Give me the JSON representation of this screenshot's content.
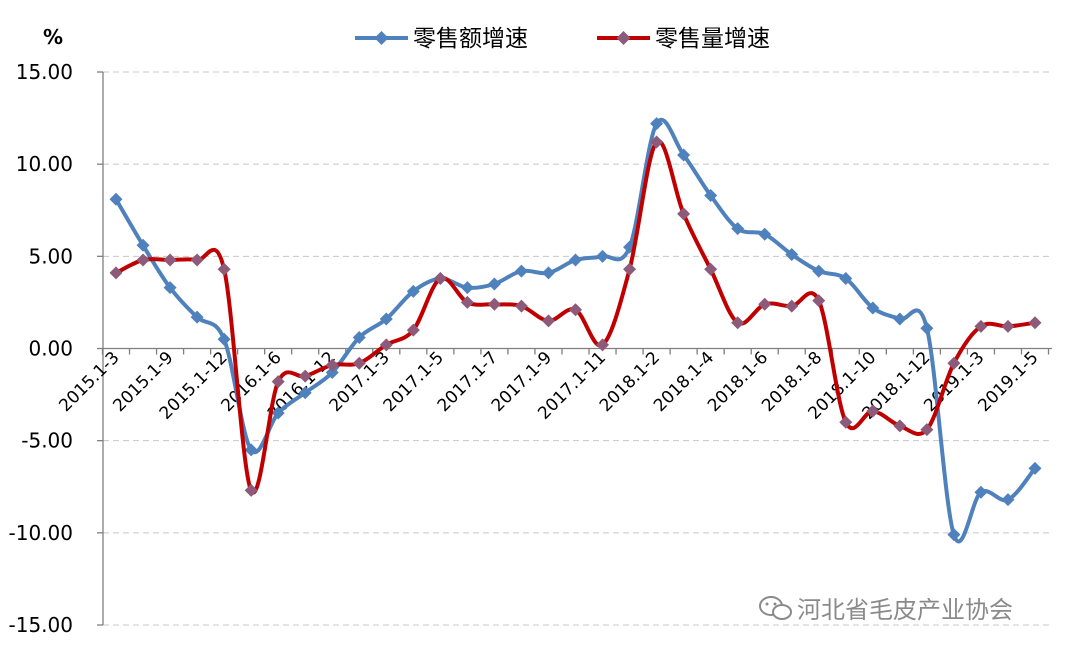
{
  "chart_data": {
    "type": "line",
    "unit_label": "%",
    "ylim": [
      -15,
      15
    ],
    "y_ticks": [
      "15.00",
      "10.00",
      "5.00",
      "0.00",
      "-5.00",
      "-10.00",
      "-15.00"
    ],
    "x_tick_labels": [
      "2015.1-3",
      "2015.1-9",
      "2015.1-12",
      "2016.1-6",
      "2016.1-12",
      "2017.1-3",
      "2017.1-5",
      "2017.1-7",
      "2017.1-9",
      "2017.1-11",
      "2018.1-2",
      "2018.1-4",
      "2018.1-6",
      "2018.1-8",
      "2018.1-10",
      "2018.1-12",
      "2019.1-3",
      "2019.1-5"
    ],
    "series": [
      {
        "name": "零售额增速",
        "color": "#4f81bd",
        "values": [
          8.1,
          5.6,
          3.3,
          1.7,
          0.5,
          -5.5,
          -3.5,
          -2.4,
          -1.3,
          0.6,
          1.6,
          3.1,
          3.8,
          3.3,
          3.5,
          4.2,
          4.1,
          4.8,
          5.0,
          5.5,
          12.2,
          10.5,
          8.3,
          6.5,
          6.2,
          5.1,
          4.2,
          3.8,
          2.2,
          1.6,
          1.1,
          -10.1,
          -7.8,
          -8.2,
          -6.5
        ]
      },
      {
        "name": "零售量增速",
        "color": "#c00000",
        "values": [
          4.1,
          4.8,
          4.8,
          4.8,
          4.3,
          -7.7,
          -1.8,
          -1.5,
          -0.9,
          -0.8,
          0.2,
          1.0,
          3.8,
          2.5,
          2.4,
          2.3,
          1.5,
          2.1,
          0.2,
          4.3,
          11.2,
          7.3,
          4.3,
          1.4,
          2.4,
          2.3,
          2.6,
          -4.0,
          -3.4,
          -4.2,
          -4.4,
          -0.8,
          1.2,
          1.2,
          1.4
        ]
      }
    ],
    "grid": true,
    "legend": "top"
  },
  "watermark": {
    "text": "河北省毛皮产业协会",
    "icon": "wechat-icon"
  }
}
